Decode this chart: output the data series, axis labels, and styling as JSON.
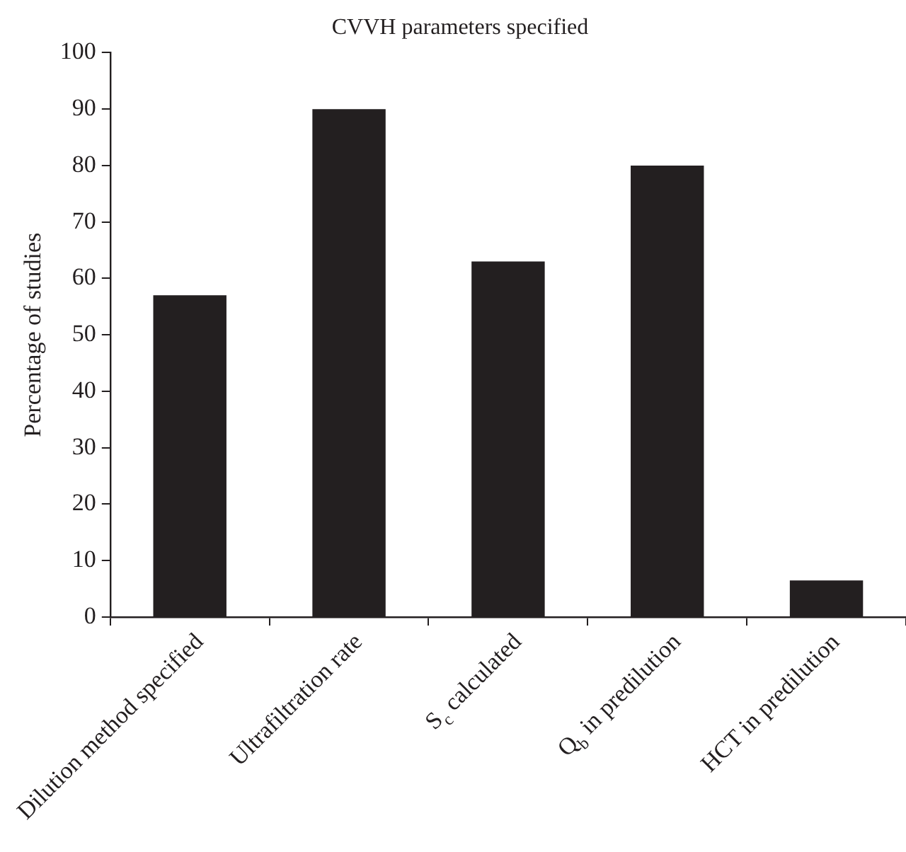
{
  "chart_data": {
    "type": "bar",
    "title": "CVVH parameters specified",
    "ylabel": "Percentage of studies",
    "categories": [
      "Dilution method specified",
      "Ultrafiltration rate",
      "S$_{c}$ calculated",
      "Q$_{b}$ in predilution",
      "HCT in predilution"
    ],
    "values": [
      57,
      90,
      63,
      80,
      6.5
    ],
    "color": "#231f20",
    "ylim": [
      0,
      100
    ],
    "yticks": [
      0,
      10,
      20,
      30,
      40,
      50,
      60,
      70,
      80,
      90,
      100
    ],
    "grid": false,
    "legend": false
  }
}
